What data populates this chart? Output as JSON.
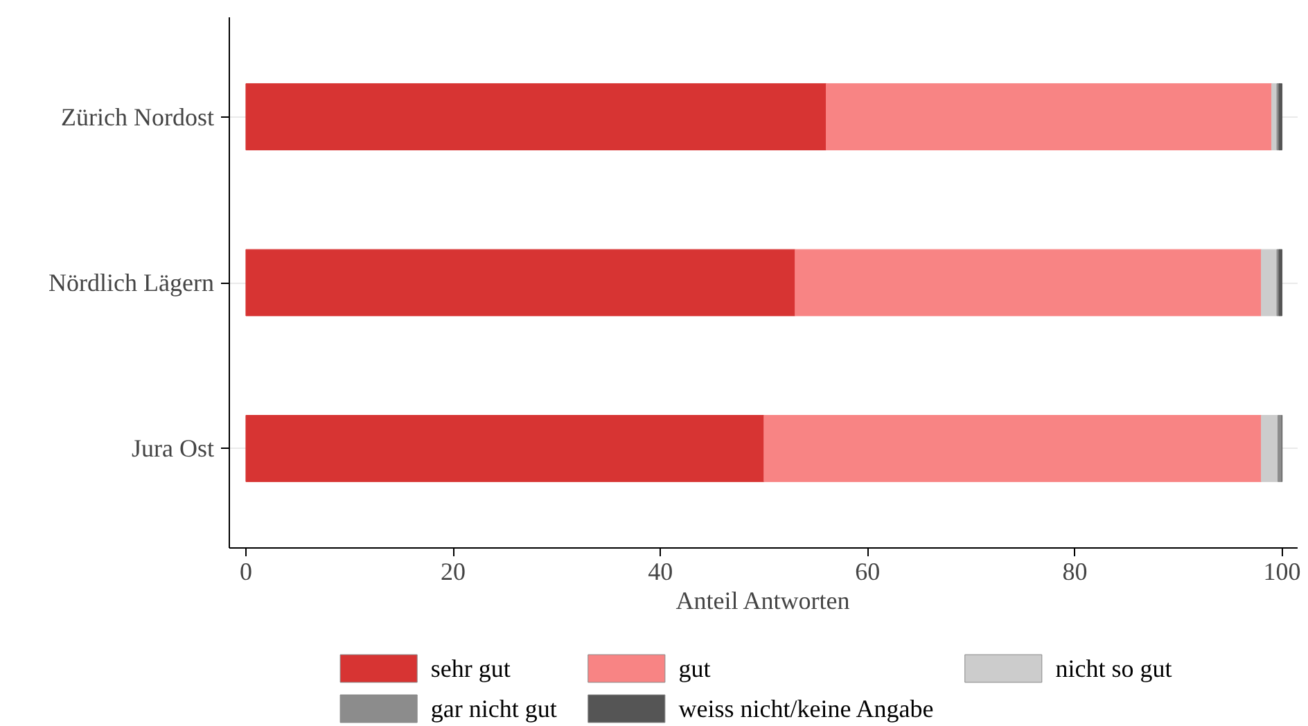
{
  "chart_data": {
    "type": "bar",
    "orientation": "horizontal",
    "stacked": true,
    "categories": [
      "Zürich Nordost",
      "Nördlich Lägern",
      "Jura Ost"
    ],
    "series": [
      {
        "name": "sehr gut",
        "color": "#d73433",
        "values": [
          56,
          53,
          50
        ]
      },
      {
        "name": "gut",
        "color": "#f88484",
        "values": [
          43,
          45,
          48
        ]
      },
      {
        "name": "nicht so gut",
        "color": "#cccccc",
        "values": [
          0.5,
          1.5,
          1.6
        ]
      },
      {
        "name": "gar nicht gut",
        "color": "#8c8c8c",
        "values": [
          0.2,
          0.2,
          0.4
        ]
      },
      {
        "name": "weiss nicht/keine Angabe",
        "color": "#555555",
        "values": [
          0.3,
          0.3,
          0
        ]
      }
    ],
    "xlabel": "Anteil Antworten",
    "xlim": [
      -1.6,
      101.5
    ],
    "xticks": [
      0,
      20,
      40,
      60,
      80,
      100
    ],
    "grid": "y",
    "legend": "bottom"
  }
}
